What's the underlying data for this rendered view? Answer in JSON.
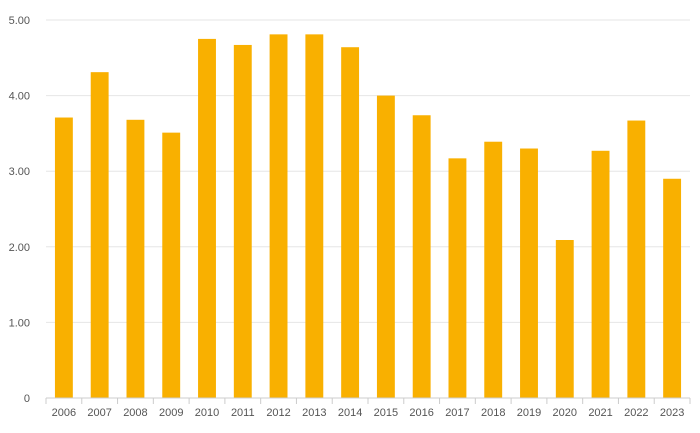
{
  "chart_data": {
    "type": "bar",
    "categories": [
      "2006",
      "2007",
      "2008",
      "2009",
      "2010",
      "2011",
      "2012",
      "2013",
      "2014",
      "2015",
      "2016",
      "2017",
      "2018",
      "2019",
      "2020",
      "2021",
      "2022",
      "2023"
    ],
    "values": [
      3.71,
      4.31,
      3.68,
      3.51,
      4.75,
      4.67,
      4.81,
      4.81,
      4.64,
      4.0,
      3.74,
      3.17,
      3.39,
      3.3,
      2.09,
      3.27,
      3.67,
      2.9
    ],
    "ylim": [
      0,
      5
    ],
    "yticks": [
      0,
      1,
      2,
      3,
      4,
      5
    ],
    "ytick_labels": [
      "0",
      "1.00",
      "2.00",
      "3.00",
      "4.00",
      "5.00"
    ],
    "grid": true,
    "bar_color": "#F9B000",
    "grid_color": "#e6e6e6",
    "axis_color": "#cccccc"
  }
}
